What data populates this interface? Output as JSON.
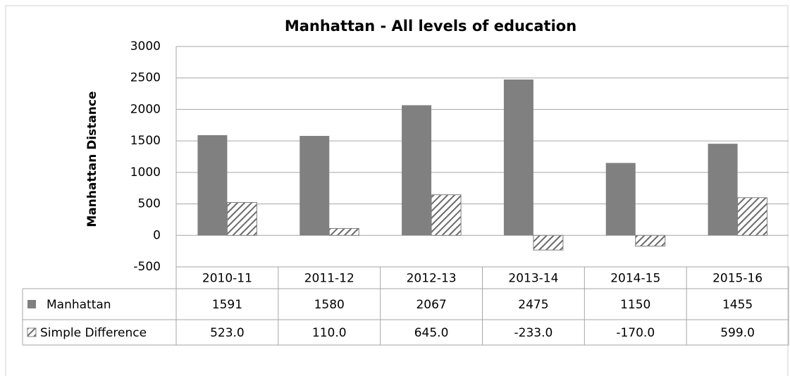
{
  "chart_data": {
    "type": "bar",
    "title": "Manhattan - All levels of education",
    "y_label": "Manhattan Distance",
    "categories": [
      "2010-11",
      "2011-12",
      "2012-13",
      "2013-14",
      "2014-15",
      "2015-16"
    ],
    "series": [
      {
        "name": "Manhattan",
        "color": "#808080",
        "values": [
          1591,
          1580,
          2067,
          2475,
          1150,
          1455
        ]
      },
      {
        "name": "Simple Difference",
        "color": "#808080",
        "hatch": true,
        "values": [
          523,
          110,
          645,
          -233,
          -170,
          599
        ],
        "value_labels": [
          "523.0",
          "110.0",
          "645.0",
          "-233.0",
          "-170.0",
          "599.0"
        ]
      }
    ],
    "ylim": [
      -500,
      3000
    ],
    "yticks": [
      -500,
      0,
      500,
      1000,
      1500,
      2000,
      2500,
      3000
    ],
    "grid": true
  }
}
